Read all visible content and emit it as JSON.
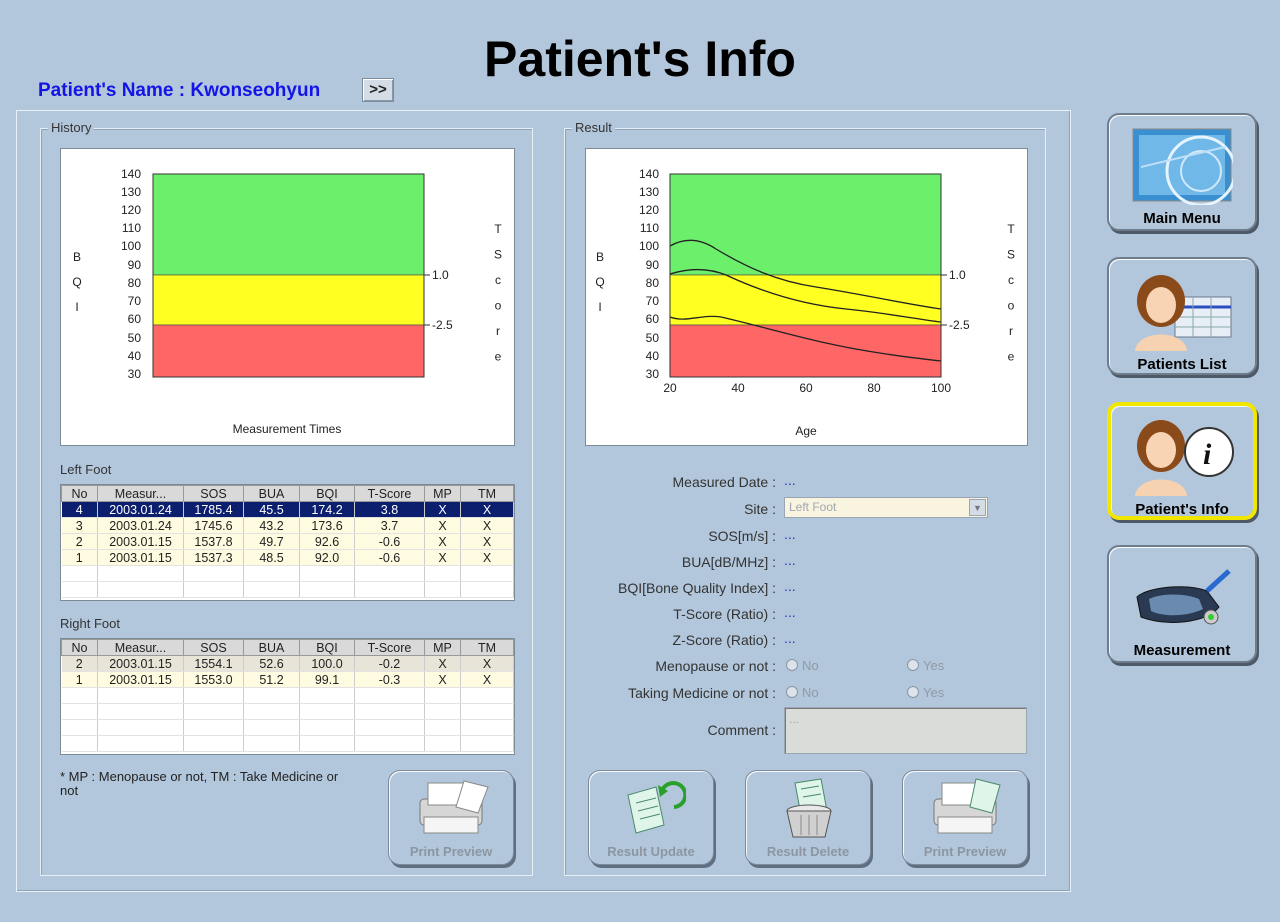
{
  "title": "Patient's Info",
  "patient": {
    "label": "Patient's Name : Kwonseohyun",
    "expand_label": ">>"
  },
  "history": {
    "group_label": "History",
    "chart": {
      "ylabel_left": "BQI",
      "ylabel_right": "TScore",
      "xlabel": "Measurement Times",
      "y_ticks": [
        "140",
        "130",
        "120",
        "110",
        "100",
        "90",
        "80",
        "70",
        "60",
        "50",
        "40",
        "30"
      ],
      "t_labels": [
        "1.0",
        "-2.5"
      ],
      "zone_colors": {
        "normal": "#6cf06c",
        "osteopenia": "#ffff22",
        "osteoporosis": "#ff6666"
      }
    }
  },
  "left_foot": {
    "label": "Left Foot",
    "columns": [
      "No",
      "Measur...",
      "SOS",
      "BUA",
      "BQI",
      "T-Score",
      "MP",
      "TM"
    ],
    "rows": [
      [
        "4",
        "2003.01.24",
        "1785.4",
        "45.5",
        "174.2",
        "3.8",
        "X",
        "X"
      ],
      [
        "3",
        "2003.01.24",
        "1745.6",
        "43.2",
        "173.6",
        "3.7",
        "X",
        "X"
      ],
      [
        "2",
        "2003.01.15",
        "1537.8",
        "49.7",
        "92.6",
        "-0.6",
        "X",
        "X"
      ],
      [
        "1",
        "2003.01.15",
        "1537.3",
        "48.5",
        "92.0",
        "-0.6",
        "X",
        "X"
      ]
    ]
  },
  "right_foot": {
    "label": "Right Foot",
    "columns": [
      "No",
      "Measur...",
      "SOS",
      "BUA",
      "BQI",
      "T-Score",
      "MP",
      "TM"
    ],
    "rows": [
      [
        "2",
        "2003.01.15",
        "1554.1",
        "52.6",
        "100.0",
        "-0.2",
        "X",
        "X"
      ],
      [
        "1",
        "2003.01.15",
        "1553.0",
        "51.2",
        "99.1",
        "-0.3",
        "X",
        "X"
      ]
    ]
  },
  "footnote": "* MP : Menopause or not, TM : Take Medicine or not",
  "print_preview_left": "Print Preview",
  "result": {
    "group_label": "Result",
    "chart": {
      "ylabel_left": "BQI",
      "ylabel_right": "TScore",
      "xlabel": "Age",
      "y_ticks": [
        "140",
        "130",
        "120",
        "110",
        "100",
        "90",
        "80",
        "70",
        "60",
        "50",
        "40",
        "30"
      ],
      "x_ticks": [
        "20",
        "40",
        "60",
        "80",
        "100"
      ],
      "t_labels": [
        "1.0",
        "-2.5"
      ]
    },
    "fields": {
      "measured_date_label": "Measured Date :",
      "measured_date_value": "...",
      "site_label": "Site :",
      "site_value": "Left Foot",
      "sos_label": "SOS[m/s] :",
      "sos_value": "...",
      "bua_label": "BUA[dB/MHz] :",
      "bua_value": "...",
      "bqi_label": "BQI[Bone Quality Index] :",
      "bqi_value": "...",
      "tscore_label": "T-Score (Ratio) :",
      "tscore_value": "...",
      "zscore_label": "Z-Score (Ratio) :",
      "zscore_value": "...",
      "menopause_label": "Menopause or not :",
      "medicine_label": "Taking Medicine or not :",
      "no_label": "No",
      "yes_label": "Yes",
      "comment_label": "Comment :",
      "comment_value": "..."
    },
    "buttons": {
      "update": "Result Update",
      "delete": "Result Delete",
      "preview": "Print Preview"
    }
  },
  "nav": {
    "main_menu": "Main Menu",
    "patients_list": "Patients List",
    "patients_info": "Patient's Info",
    "measurement": "Measurement"
  }
}
